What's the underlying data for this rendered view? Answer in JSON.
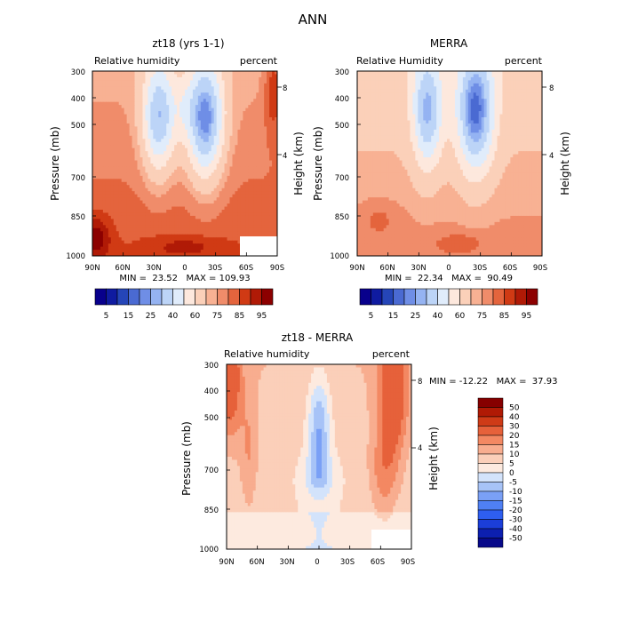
{
  "suptitle": "ANN",
  "colors": {
    "full_scale": [
      "#08008c",
      "#0f1ba0",
      "#2545b8",
      "#4a6ad2",
      "#6f8ee6",
      "#95b3f2",
      "#bcd4f7",
      "#e0ecfb",
      "#fde8dd",
      "#fbd0b9",
      "#f8b193",
      "#f08c6a",
      "#e4643d",
      "#d03a14",
      "#b01a06",
      "#8c0000"
    ],
    "diff_scale": [
      "#07098a",
      "#0c1fb0",
      "#1b3ed9",
      "#2e5ef0",
      "#4f80f4",
      "#7aa0f6",
      "#a7c3f7",
      "#d3e3fb",
      "#fdeadf",
      "#fbcfb9",
      "#f8ad8f",
      "#f38862",
      "#e6613a",
      "#cf3b17",
      "#b01a05",
      "#860000"
    ]
  },
  "chart_data": [
    {
      "type": "heatmap",
      "title": "zt18 (yrs 1-1)",
      "left_label": "Relative humidity",
      "right_label": "percent",
      "ylabel": "Pressure (mb)",
      "y2label": "Height (km)",
      "x_ticks": [
        "90N",
        "60N",
        "30N",
        "0",
        "30S",
        "60S",
        "90S"
      ],
      "y_ticks": [
        300,
        400,
        500,
        700,
        850,
        1000
      ],
      "y2_ticks": [
        "8",
        "4"
      ],
      "stats": "MIN =  23.52   MAX = 109.93",
      "legend": "colorbar-below",
      "colorbar_labels": [
        "5",
        "15",
        "25",
        "40",
        "60",
        "75",
        "85",
        "95"
      ]
    },
    {
      "type": "heatmap",
      "title": "MERRA",
      "left_label": "Relative Humidity",
      "right_label": "percent",
      "ylabel": "Pressure (mb)",
      "y2label": "Height (km)",
      "x_ticks": [
        "90N",
        "60N",
        "30N",
        "0",
        "30S",
        "60S",
        "90S"
      ],
      "y_ticks": [
        300,
        400,
        500,
        700,
        850,
        1000
      ],
      "y2_ticks": [
        "8",
        "4"
      ],
      "stats": "MIN =  22.34   MAX =  90.49",
      "legend": "colorbar-below",
      "colorbar_labels": [
        "5",
        "15",
        "25",
        "40",
        "60",
        "75",
        "85",
        "95"
      ]
    },
    {
      "type": "heatmap",
      "title": "zt18 - MERRA",
      "left_label": "Relative humidity",
      "right_label": "percent",
      "ylabel": "Pressure (mb)",
      "y2label": "Height (km)",
      "x_ticks": [
        "90N",
        "60N",
        "30N",
        "0",
        "30S",
        "60S",
        "90S"
      ],
      "y_ticks": [
        300,
        400,
        500,
        700,
        850,
        1000
      ],
      "y2_ticks": [
        "8",
        "4"
      ],
      "stats": "MIN = -12.22   MAX =  37.93",
      "legend": "colorbar-right",
      "colorbar_labels": [
        "50",
        "40",
        "30",
        "20",
        "15",
        "10",
        "5",
        "0",
        "-5",
        "-10",
        "-15",
        "-20",
        "-30",
        "-40",
        "-50"
      ]
    }
  ]
}
